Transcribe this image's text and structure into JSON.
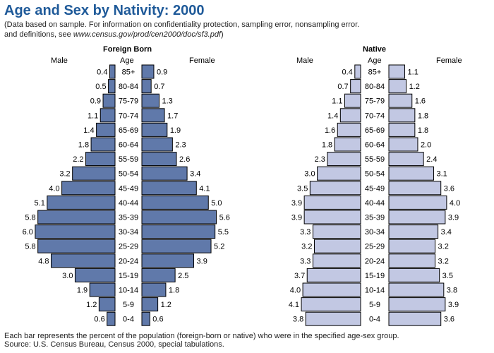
{
  "title": "Age and Sex by Nativity: 2000",
  "subtitle": {
    "line1": "(Data based on sample.  For information on confidentiality protection, sampling error, nonsampling error.",
    "line2_pre": "and definitions, see ",
    "line2_url": "www.census.gov/prod/cen2000/doc/sf3.pdf",
    "line2_post": ")"
  },
  "footer": {
    "line1": "Each bar represents the percent of the population (foreign-born or native) who were in the specified age-sex group.",
    "line2": "Source: U.S. Census Bureau, Census 2000, special tabulations."
  },
  "colors": {
    "title": "#1f5a99",
    "foreign_fill": "#6079aa",
    "native_fill": "#c2c8e3",
    "bar_stroke": "#000000"
  },
  "chart_data": [
    {
      "type": "bar",
      "orientation": "population-pyramid",
      "title": "Foreign Born",
      "left_label": "Male",
      "center_label": "Age",
      "right_label": "Female",
      "categories": [
        "85+",
        "80-84",
        "75-79",
        "70-74",
        "65-69",
        "60-64",
        "55-59",
        "50-54",
        "45-49",
        "40-44",
        "35-39",
        "30-34",
        "25-29",
        "20-24",
        "15-19",
        "10-14",
        "5-9",
        "0-4"
      ],
      "series": [
        {
          "name": "Male",
          "values": [
            0.4,
            0.5,
            0.9,
            1.1,
            1.4,
            1.8,
            2.2,
            3.2,
            4.0,
            5.1,
            5.8,
            6.0,
            5.8,
            4.8,
            3.0,
            1.9,
            1.2,
            0.6
          ]
        },
        {
          "name": "Female",
          "values": [
            0.9,
            0.7,
            1.3,
            1.7,
            1.9,
            2.3,
            2.6,
            3.4,
            4.1,
            5.0,
            5.6,
            5.5,
            5.2,
            3.9,
            2.5,
            1.8,
            1.2,
            0.6
          ]
        }
      ],
      "xlim": [
        0,
        6.1
      ]
    },
    {
      "type": "bar",
      "orientation": "population-pyramid",
      "title": "Native",
      "left_label": "Male",
      "center_label": "Age",
      "right_label": "Female",
      "categories": [
        "85+",
        "80-84",
        "75-79",
        "70-74",
        "65-69",
        "60-64",
        "55-59",
        "50-54",
        "45-49",
        "40-44",
        "35-39",
        "30-34",
        "25-29",
        "20-24",
        "15-19",
        "10-14",
        "5-9",
        "0-4"
      ],
      "series": [
        {
          "name": "Male",
          "values": [
            0.4,
            0.7,
            1.1,
            1.4,
            1.6,
            1.8,
            2.3,
            3.0,
            3.5,
            3.9,
            3.9,
            3.3,
            3.2,
            3.3,
            3.7,
            4.0,
            4.1,
            3.8
          ]
        },
        {
          "name": "Female",
          "values": [
            1.1,
            1.2,
            1.6,
            1.8,
            1.8,
            2.0,
            2.4,
            3.1,
            3.6,
            4.0,
            3.9,
            3.4,
            3.2,
            3.2,
            3.5,
            3.8,
            3.9,
            3.6
          ]
        }
      ],
      "xlim": [
        0,
        4.2
      ]
    }
  ]
}
